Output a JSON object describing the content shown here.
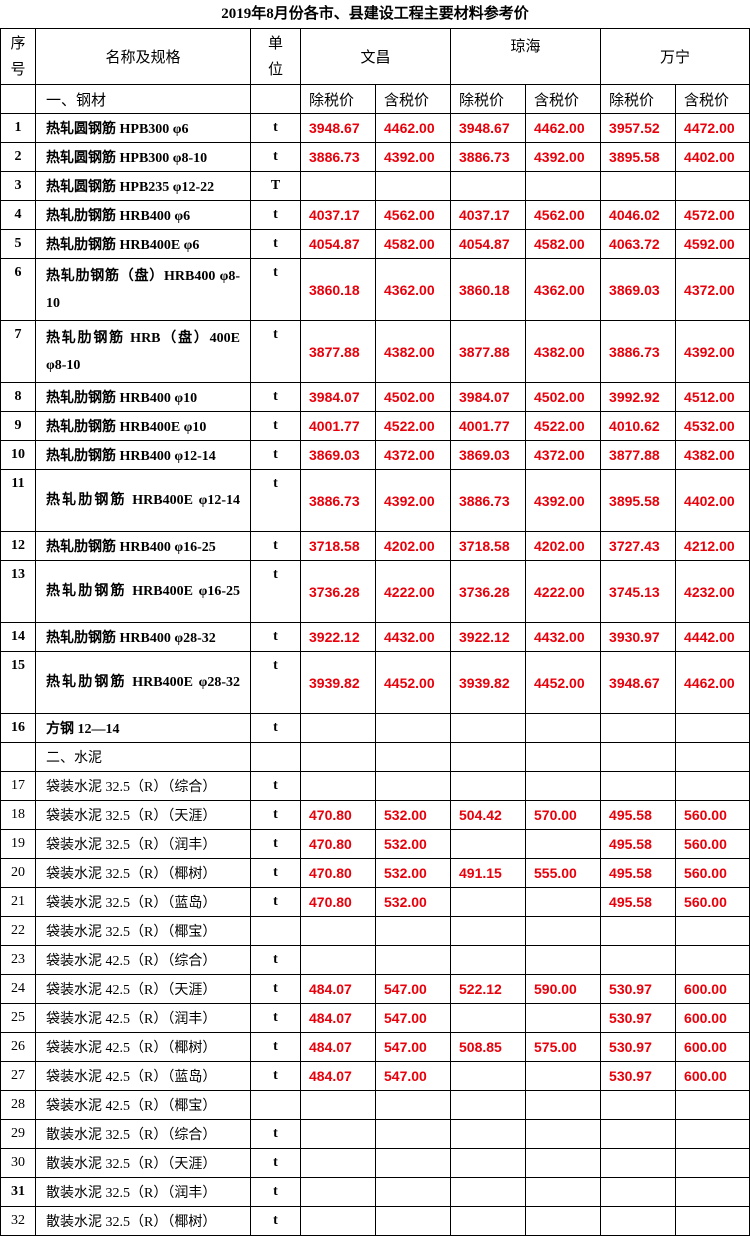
{
  "title": "2019年8月份各市、县建设工程主要材料参考价",
  "headers": {
    "no": "序号",
    "name": "名称及规格",
    "unit": "单位",
    "cities": [
      "文昌",
      "琼海",
      "万宁"
    ],
    "price_pre": "除税价",
    "price_incl": "含税价"
  },
  "sections": [
    "一、钢材",
    "二、水泥"
  ],
  "rows": [
    {
      "no": "1",
      "name": "热轧圆钢筋 HPB300 φ6",
      "unit": "t",
      "p": [
        "3948.67",
        "4462.00",
        "3948.67",
        "4462.00",
        "3957.52",
        "4472.00"
      ]
    },
    {
      "no": "2",
      "name": "热轧圆钢筋 HPB300 φ8-10",
      "unit": "t",
      "p": [
        "3886.73",
        "4392.00",
        "3886.73",
        "4392.00",
        "3895.58",
        "4402.00"
      ]
    },
    {
      "no": "3",
      "name": "热轧圆钢筋 HPB235 φ12-22",
      "unit": "T",
      "p": [
        "",
        "",
        "",
        "",
        "",
        ""
      ]
    },
    {
      "no": "4",
      "name": "热轧肋钢筋 HRB400 φ6",
      "unit": "t",
      "p": [
        "4037.17",
        "4562.00",
        "4037.17",
        "4562.00",
        "4046.02",
        "4572.00"
      ]
    },
    {
      "no": "5",
      "name": "热轧肋钢筋 HRB400E φ6",
      "unit": "t",
      "p": [
        "4054.87",
        "4582.00",
        "4054.87",
        "4582.00",
        "4063.72",
        "4592.00"
      ]
    },
    {
      "no": "6",
      "name": "热轧肋钢筋（盘）HRB400 φ8-10",
      "unit": "t",
      "p": [
        "3860.18",
        "4362.00",
        "3860.18",
        "4362.00",
        "3869.03",
        "4372.00"
      ],
      "double": true
    },
    {
      "no": "7",
      "name": "热轧肋钢筋 HRB（盘）400E φ8-10",
      "unit": "t",
      "p": [
        "3877.88",
        "4382.00",
        "3877.88",
        "4382.00",
        "3886.73",
        "4392.00"
      ],
      "double": true
    },
    {
      "no": "8",
      "name": "热轧肋钢筋 HRB400 φ10",
      "unit": "t",
      "p": [
        "3984.07",
        "4502.00",
        "3984.07",
        "4502.00",
        "3992.92",
        "4512.00"
      ]
    },
    {
      "no": "9",
      "name": "热轧肋钢筋 HRB400E φ10",
      "unit": "t",
      "p": [
        "4001.77",
        "4522.00",
        "4001.77",
        "4522.00",
        "4010.62",
        "4532.00"
      ]
    },
    {
      "no": "10",
      "name": "热轧肋钢筋 HRB400 φ12-14",
      "unit": "t",
      "p": [
        "3869.03",
        "4372.00",
        "3869.03",
        "4372.00",
        "3877.88",
        "4382.00"
      ]
    },
    {
      "no": "11",
      "name": "热轧肋钢筋 HRB400E φ12-14",
      "unit": "t",
      "p": [
        "3886.73",
        "4392.00",
        "3886.73",
        "4392.00",
        "3895.58",
        "4402.00"
      ],
      "double": true
    },
    {
      "no": "12",
      "name": "热轧肋钢筋 HRB400 φ16-25",
      "unit": "t",
      "p": [
        "3718.58",
        "4202.00",
        "3718.58",
        "4202.00",
        "3727.43",
        "4212.00"
      ]
    },
    {
      "no": "13",
      "name": "热轧肋钢筋 HRB400E φ16-25",
      "unit": "t",
      "p": [
        "3736.28",
        "4222.00",
        "3736.28",
        "4222.00",
        "3745.13",
        "4232.00"
      ],
      "double": true
    },
    {
      "no": "14",
      "name": "热轧肋钢筋 HRB400 φ28-32",
      "unit": "t",
      "p": [
        "3922.12",
        "4432.00",
        "3922.12",
        "4432.00",
        "3930.97",
        "4442.00"
      ]
    },
    {
      "no": "15",
      "name": "热轧肋钢筋 HRB400E φ28-32",
      "unit": "t",
      "p": [
        "3939.82",
        "4452.00",
        "3939.82",
        "4452.00",
        "3948.67",
        "4462.00"
      ],
      "double": true
    },
    {
      "no": "16",
      "name": "方钢 12—14",
      "unit": "t",
      "p": [
        "",
        "",
        "",
        "",
        "",
        ""
      ]
    },
    {
      "section": 1
    },
    {
      "no": "17",
      "name": "袋装水泥 32.5（R）（综合）",
      "unit": "t",
      "p": [
        "",
        "",
        "",
        "",
        "",
        ""
      ]
    },
    {
      "no": "18",
      "name": "袋装水泥 32.5（R）（天涯）",
      "unit": "t",
      "p": [
        "470.80",
        "532.00",
        "504.42",
        "570.00",
        "495.58",
        "560.00"
      ]
    },
    {
      "no": "19",
      "name": "袋装水泥 32.5（R）（润丰）",
      "unit": "t",
      "p": [
        "470.80",
        "532.00",
        "",
        "",
        "495.58",
        "560.00"
      ]
    },
    {
      "no": "20",
      "name": "袋装水泥 32.5（R）（椰树）",
      "unit": "t",
      "p": [
        "470.80",
        "532.00",
        "491.15",
        "555.00",
        "495.58",
        "560.00"
      ]
    },
    {
      "no": "21",
      "name": "袋装水泥 32.5（R）（蓝岛）",
      "unit": "t",
      "p": [
        "470.80",
        "532.00",
        "",
        "",
        "495.58",
        "560.00"
      ]
    },
    {
      "no": "22",
      "name": "袋装水泥 32.5（R）（椰宝）",
      "unit": "",
      "p": [
        "",
        "",
        "",
        "",
        "",
        ""
      ]
    },
    {
      "no": "23",
      "name": "袋装水泥 42.5（R）（综合）",
      "unit": "t",
      "p": [
        "",
        "",
        "",
        "",
        "",
        ""
      ]
    },
    {
      "no": "24",
      "name": "袋装水泥 42.5（R）（天涯）",
      "unit": "t",
      "p": [
        "484.07",
        "547.00",
        "522.12",
        "590.00",
        "530.97",
        "600.00"
      ]
    },
    {
      "no": "25",
      "name": "袋装水泥 42.5（R）（润丰）",
      "unit": "t",
      "p": [
        "484.07",
        "547.00",
        "",
        "",
        "530.97",
        "600.00"
      ]
    },
    {
      "no": "26",
      "name": "袋装水泥 42.5（R）（椰树）",
      "unit": "t",
      "p": [
        "484.07",
        "547.00",
        "508.85",
        "575.00",
        "530.97",
        "600.00"
      ]
    },
    {
      "no": "27",
      "name": "袋装水泥 42.5（R）（蓝岛）",
      "unit": "t",
      "p": [
        "484.07",
        "547.00",
        "",
        "",
        "530.97",
        "600.00"
      ]
    },
    {
      "no": "28",
      "name": "袋装水泥 42.5（R）（椰宝）",
      "unit": "",
      "p": [
        "",
        "",
        "",
        "",
        "",
        ""
      ]
    },
    {
      "no": "29",
      "name": "散装水泥 32.5（R）（综合）",
      "unit": "t",
      "p": [
        "",
        "",
        "",
        "",
        "",
        ""
      ]
    },
    {
      "no": "30",
      "name": "散装水泥 32.5（R）（天涯）",
      "unit": "t",
      "p": [
        "",
        "",
        "",
        "",
        "",
        ""
      ]
    },
    {
      "no": "31",
      "name": "散装水泥 32.5（R）（润丰）",
      "unit": "t",
      "p": [
        "",
        "",
        "",
        "",
        "",
        ""
      ]
    },
    {
      "no": "32",
      "name": "散装水泥 32.5（R）（椰树）",
      "unit": "t",
      "p": [
        "",
        "",
        "",
        "",
        "",
        ""
      ]
    }
  ]
}
